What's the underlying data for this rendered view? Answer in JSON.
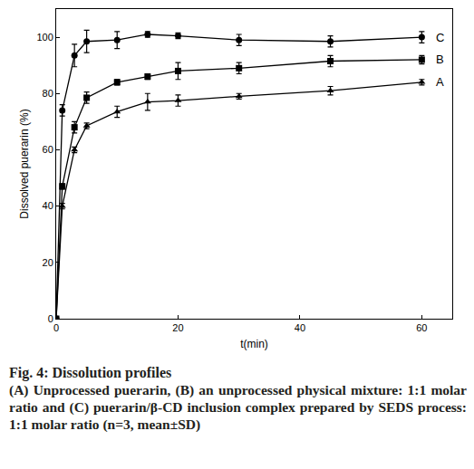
{
  "chart_data": {
    "type": "line",
    "title": "Fig. 4: Dissolution profiles",
    "subtitle": "(A) Unprocessed puerarin, (B) an unprocessed physical mixture: 1:1 molar ratio and (C) puerarin/β-CD inclusion complex prepared by SEDS process: 1:1 molar ratio (n=3, mean±SD)",
    "x_label": "t(min)",
    "y_label": "Dissolved puerarin (%)",
    "x": [
      0,
      1,
      3,
      5,
      10,
      15,
      20,
      30,
      45,
      60
    ],
    "series": [
      {
        "name": "A",
        "color": "#000000",
        "marker": "triangle-up",
        "values": [
          0,
          40,
          60,
          68.5,
          73.5,
          77,
          77.5,
          79,
          81,
          84
        ],
        "errors": [
          0,
          1,
          1,
          1,
          2,
          3,
          2,
          1,
          1.5,
          1
        ]
      },
      {
        "name": "B",
        "color": "#000000",
        "marker": "square",
        "values": [
          0,
          47,
          68,
          78.5,
          84,
          86,
          88,
          89,
          91.5,
          92
        ],
        "errors": [
          0,
          1,
          2,
          2,
          1,
          1,
          3,
          2,
          2,
          1.5
        ]
      },
      {
        "name": "C",
        "color": "#000000",
        "marker": "circle",
        "values": [
          0,
          74,
          93.5,
          98.5,
          99,
          101,
          100.5,
          99,
          98.5,
          100
        ],
        "errors": [
          0,
          2,
          4,
          4,
          3,
          1,
          1,
          2,
          2,
          2
        ]
      }
    ],
    "xlim": [
      0,
      65
    ],
    "ylim": [
      0,
      110
    ],
    "xticks": [
      0,
      20,
      40,
      60
    ],
    "yticks": [
      0,
      20,
      40,
      60,
      80,
      100
    ],
    "grid": false
  }
}
